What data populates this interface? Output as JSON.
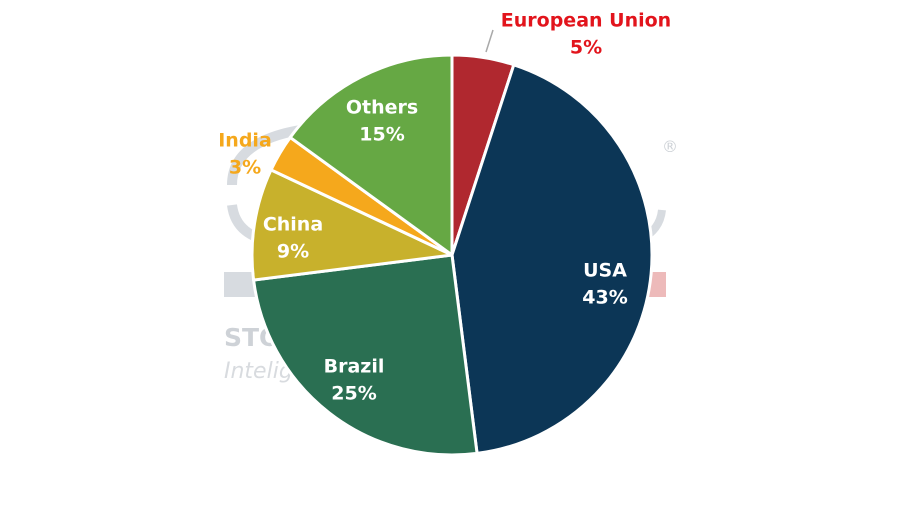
{
  "chart_data": {
    "type": "pie",
    "title": "",
    "slices": [
      {
        "label": "European Union",
        "value": 5,
        "value_label": "5%",
        "color": "#b0282f",
        "label_color": "#e2141c"
      },
      {
        "label": "USA",
        "value": 43,
        "value_label": "43%",
        "color": "#0c3656",
        "label_color": "#ffffff"
      },
      {
        "label": "Brazil",
        "value": 25,
        "value_label": "25%",
        "color": "#2a6f52",
        "label_color": "#ffffff"
      },
      {
        "label": "China",
        "value": 9,
        "value_label": "9%",
        "color": "#c8b12c",
        "label_color": "#ffffff"
      },
      {
        "label": "India",
        "value": 3,
        "value_label": "3%",
        "color": "#f5a81c",
        "label_color": "#f5a81c"
      },
      {
        "label": "Others",
        "value": 15,
        "value_label": "15%",
        "color": "#66a844",
        "label_color": "#ffffff"
      }
    ],
    "legend": "none"
  },
  "watermark": {
    "line1": "STO",
    "line2": "Intelig",
    "registered_mark": "®",
    "color": "#c9ced3"
  }
}
